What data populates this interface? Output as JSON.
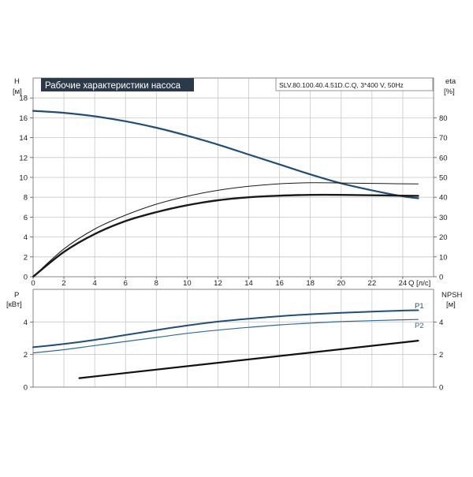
{
  "header": {
    "title": "Рабочие характеристики насоса",
    "model": "SLV.80.100.40.4.51D.C.Q, 3*400 V, 50Hz"
  },
  "colors": {
    "head_curve": "#1f4e79",
    "eff_curve": "#1a1a1a",
    "p1_curve": "#1f4e79",
    "p2_curve": "#2f6a9e",
    "npsh_curve": "#111111",
    "title_bg": "#2b3a4a"
  },
  "chart_data": [
    {
      "type": "line",
      "name": "upper",
      "xlabel": "Q [л/с]",
      "xlim": [
        0,
        26
      ],
      "xticks": [
        0,
        2,
        4,
        6,
        8,
        10,
        12,
        14,
        16,
        18,
        20,
        22,
        24
      ],
      "y_left": {
        "label": "H",
        "unit": "[м]",
        "lim": [
          0,
          20
        ],
        "ticks": [
          0,
          2,
          4,
          6,
          8,
          10,
          12,
          14,
          16,
          18
        ]
      },
      "y_right": {
        "label": "eta",
        "unit": "[%]",
        "lim": [
          0,
          100
        ],
        "ticks": [
          0,
          10,
          20,
          30,
          40,
          50,
          60,
          70,
          80
        ]
      },
      "grid": true,
      "series": [
        {
          "key": "H",
          "axis": "left",
          "width": 2.2,
          "color": "#1f4e79",
          "x": [
            0,
            2,
            4,
            6,
            8,
            10,
            12,
            14,
            16,
            18,
            20,
            22,
            24,
            25
          ],
          "y": [
            16.7,
            16.5,
            16.15,
            15.65,
            15.0,
            14.2,
            13.3,
            12.3,
            11.3,
            10.3,
            9.4,
            8.7,
            8.1,
            7.9
          ]
        },
        {
          "key": "eta_thin",
          "axis": "right",
          "width": 1.0,
          "color": "#1a1a1a",
          "x": [
            0,
            2,
            4,
            6,
            8,
            10,
            12,
            14,
            16,
            18,
            20,
            22,
            24,
            25
          ],
          "y": [
            0,
            14,
            24,
            31,
            36.5,
            40.5,
            43.5,
            45.5,
            46.8,
            47.3,
            47.2,
            47.0,
            46.8,
            46.7
          ]
        },
        {
          "key": "eta_thick",
          "axis": "right",
          "width": 2.4,
          "color": "#1a1a1a",
          "x": [
            0,
            2,
            4,
            6,
            8,
            10,
            12,
            14,
            16,
            18,
            20,
            22,
            24,
            25
          ],
          "y": [
            0,
            12.5,
            21.5,
            28,
            32.5,
            36,
            38.5,
            40,
            40.8,
            41.2,
            41.2,
            41.0,
            40.8,
            40.7
          ]
        }
      ]
    },
    {
      "type": "line",
      "name": "lower",
      "xlim": [
        0,
        26
      ],
      "y_left": {
        "label": "P",
        "unit": "[кВт]",
        "lim": [
          0,
          6
        ],
        "ticks": [
          0,
          2,
          4
        ]
      },
      "y_right": {
        "label": "NPSH",
        "unit": "[м]",
        "lim": [
          0,
          6
        ],
        "ticks": [
          0,
          2,
          4
        ]
      },
      "grid": true,
      "series": [
        {
          "key": "P1",
          "name": "P1",
          "axis": "left",
          "width": 2.0,
          "color": "#1f4e79",
          "x": [
            0,
            2,
            4,
            6,
            8,
            10,
            12,
            14,
            16,
            18,
            20,
            22,
            24,
            25
          ],
          "y": [
            2.45,
            2.65,
            2.9,
            3.2,
            3.5,
            3.78,
            4.02,
            4.2,
            4.35,
            4.47,
            4.56,
            4.63,
            4.7,
            4.72
          ]
        },
        {
          "key": "P2",
          "name": "P2",
          "axis": "left",
          "width": 1.2,
          "color": "#2f6a9e",
          "x": [
            0,
            2,
            4,
            6,
            8,
            10,
            12,
            14,
            16,
            18,
            20,
            22,
            24,
            25
          ],
          "y": [
            2.1,
            2.3,
            2.55,
            2.8,
            3.05,
            3.3,
            3.5,
            3.67,
            3.82,
            3.93,
            4.02,
            4.08,
            4.13,
            4.15
          ]
        },
        {
          "key": "NPSH",
          "axis": "right",
          "width": 2.2,
          "color": "#111111",
          "x": [
            3,
            25
          ],
          "y": [
            0.55,
            2.85
          ]
        }
      ]
    }
  ]
}
